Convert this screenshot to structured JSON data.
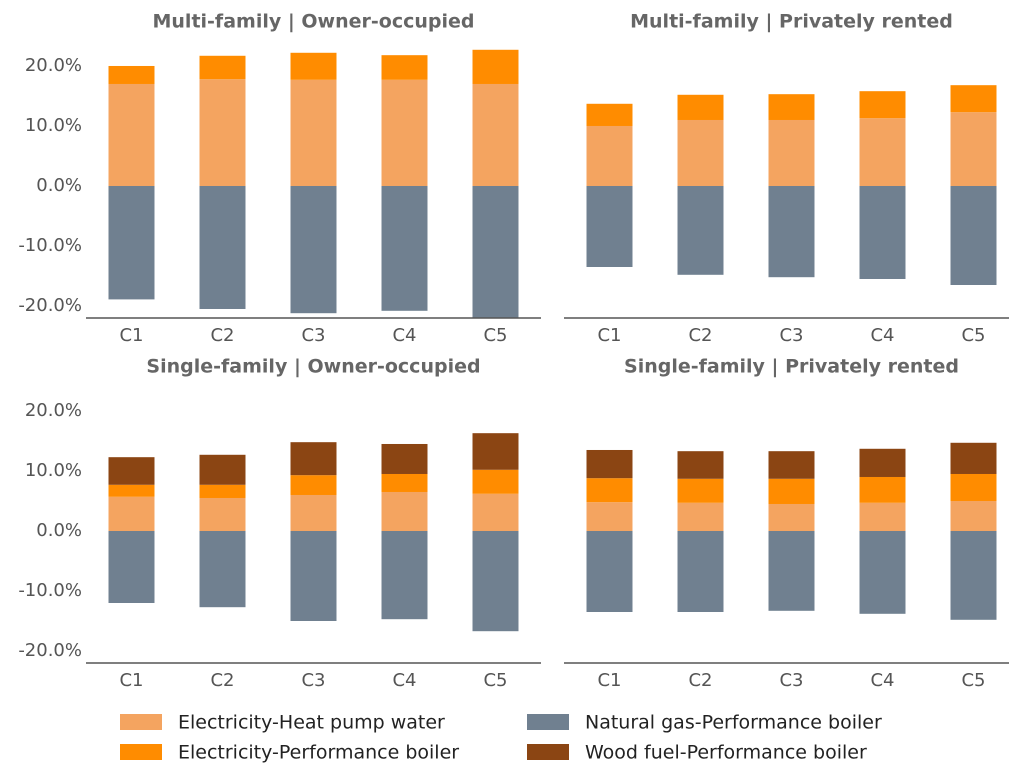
{
  "chart_data": [
    {
      "type": "bar",
      "stacked": true,
      "title": "Multi-family | Owner-occupied",
      "categories": [
        "C1",
        "C2",
        "C3",
        "C4",
        "C5"
      ],
      "series": [
        {
          "name": "Electricity-Heat pump water",
          "color": "#f4a460",
          "values": [
            17.0,
            17.8,
            17.7,
            17.7,
            17.0
          ]
        },
        {
          "name": "Electricity-Performance boiler",
          "color": "#ff8c00",
          "values": [
            3.0,
            3.9,
            4.5,
            4.1,
            5.7
          ]
        },
        {
          "name": "Natural gas-Performance boiler",
          "color": "#708090",
          "values": [
            -18.9,
            -20.5,
            -21.2,
            -20.8,
            -22.0
          ]
        }
      ],
      "ylim": [
        -22,
        24.33
      ],
      "yticks": [
        {
          "value": -20,
          "label": "-20.0%"
        },
        {
          "value": -10,
          "label": "-10.0%"
        },
        {
          "value": 0,
          "label": "0.0%"
        },
        {
          "value": 10,
          "label": "10.0%"
        },
        {
          "value": 20,
          "label": "20.0%"
        }
      ]
    },
    {
      "type": "bar",
      "stacked": true,
      "title": "Multi-family | Privately rented",
      "categories": [
        "C1",
        "C2",
        "C3",
        "C4",
        "C5"
      ],
      "series": [
        {
          "name": "Electricity-Heat pump water",
          "color": "#f4a460",
          "values": [
            10.0,
            11.0,
            11.0,
            11.3,
            12.3
          ]
        },
        {
          "name": "Electricity-Performance boiler",
          "color": "#ff8c00",
          "values": [
            3.7,
            4.2,
            4.3,
            4.5,
            4.5
          ]
        },
        {
          "name": "Natural gas-Performance boiler",
          "color": "#708090",
          "values": [
            -13.5,
            -14.8,
            -15.2,
            -15.5,
            -16.5
          ]
        }
      ],
      "ylim": [
        -22,
        24.33
      ]
    },
    {
      "type": "bar",
      "stacked": true,
      "title": "Single-family | Owner-occupied",
      "categories": [
        "C1",
        "C2",
        "C3",
        "C4",
        "C5"
      ],
      "series": [
        {
          "name": "Electricity-Heat pump water",
          "color": "#f4a460",
          "values": [
            5.7,
            5.5,
            6.0,
            6.5,
            6.2
          ]
        },
        {
          "name": "Electricity-Performance boiler",
          "color": "#ff8c00",
          "values": [
            2.0,
            2.2,
            3.3,
            3.0,
            4.0
          ]
        },
        {
          "name": "Natural gas-Performance boiler",
          "color": "#708090",
          "values": [
            -12.0,
            -12.7,
            -15.0,
            -14.7,
            -16.7
          ]
        },
        {
          "name": "Wood fuel-Performance boiler",
          "color": "#8b4513",
          "values": [
            4.6,
            5.0,
            5.5,
            5.0,
            6.1
          ]
        }
      ],
      "ylim": [
        -22,
        24.33
      ],
      "yticks": [
        {
          "value": -20,
          "label": "-20.0%"
        },
        {
          "value": -10,
          "label": "-10.0%"
        },
        {
          "value": 0,
          "label": "0.0%"
        },
        {
          "value": 10,
          "label": "10.0%"
        },
        {
          "value": 20,
          "label": "20.0%"
        }
      ]
    },
    {
      "type": "bar",
      "stacked": true,
      "title": "Single-family | Privately rented",
      "categories": [
        "C1",
        "C2",
        "C3",
        "C4",
        "C5"
      ],
      "series": [
        {
          "name": "Electricity-Heat pump water",
          "color": "#f4a460",
          "values": [
            4.8,
            4.7,
            4.5,
            4.7,
            5.0
          ]
        },
        {
          "name": "Electricity-Performance boiler",
          "color": "#ff8c00",
          "values": [
            4.0,
            4.0,
            4.2,
            4.3,
            4.5
          ]
        },
        {
          "name": "Natural gas-Performance boiler",
          "color": "#708090",
          "values": [
            -13.5,
            -13.5,
            -13.3,
            -13.8,
            -14.8
          ]
        },
        {
          "name": "Wood fuel-Performance boiler",
          "color": "#8b4513",
          "values": [
            4.7,
            4.6,
            4.6,
            4.7,
            5.2
          ]
        }
      ],
      "ylim": [
        -22,
        24.33
      ]
    }
  ]
}
